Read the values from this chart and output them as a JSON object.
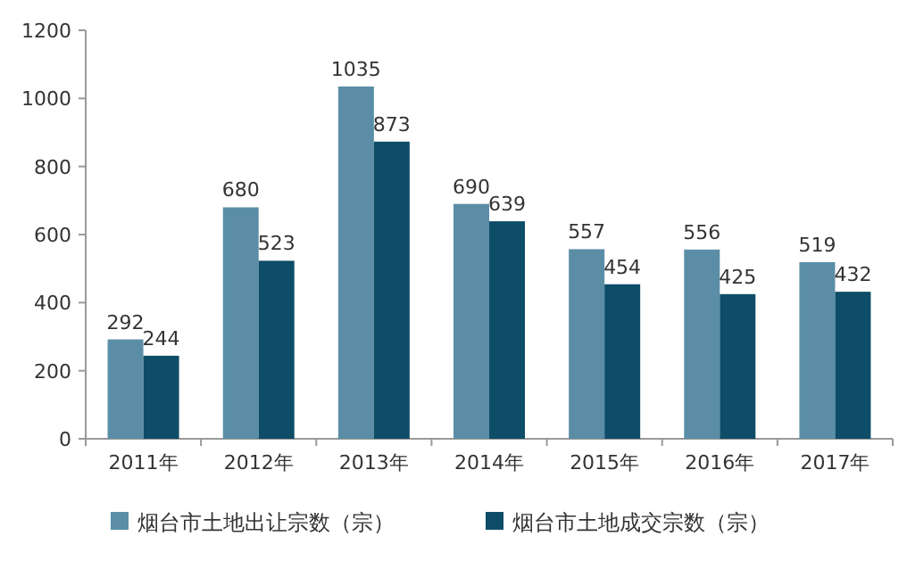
{
  "chart_data": {
    "type": "bar",
    "categories": [
      "2011年",
      "2012年",
      "2013年",
      "2014年",
      "2015年",
      "2016年",
      "2017年"
    ],
    "series": [
      {
        "name": "烟台市土地出让宗数（宗）",
        "color": "#5b8ea6",
        "values": [
          292,
          680,
          1035,
          690,
          557,
          556,
          519
        ]
      },
      {
        "name": "烟台市土地成交宗数（宗）",
        "color": "#0e4d67",
        "values": [
          244,
          523,
          873,
          639,
          454,
          425,
          432
        ]
      }
    ],
    "ylim": [
      0,
      1200
    ],
    "yticks": [
      0,
      200,
      400,
      600,
      800,
      1000,
      1200
    ],
    "data_labels": true,
    "legend": "bottom",
    "grid": false
  }
}
